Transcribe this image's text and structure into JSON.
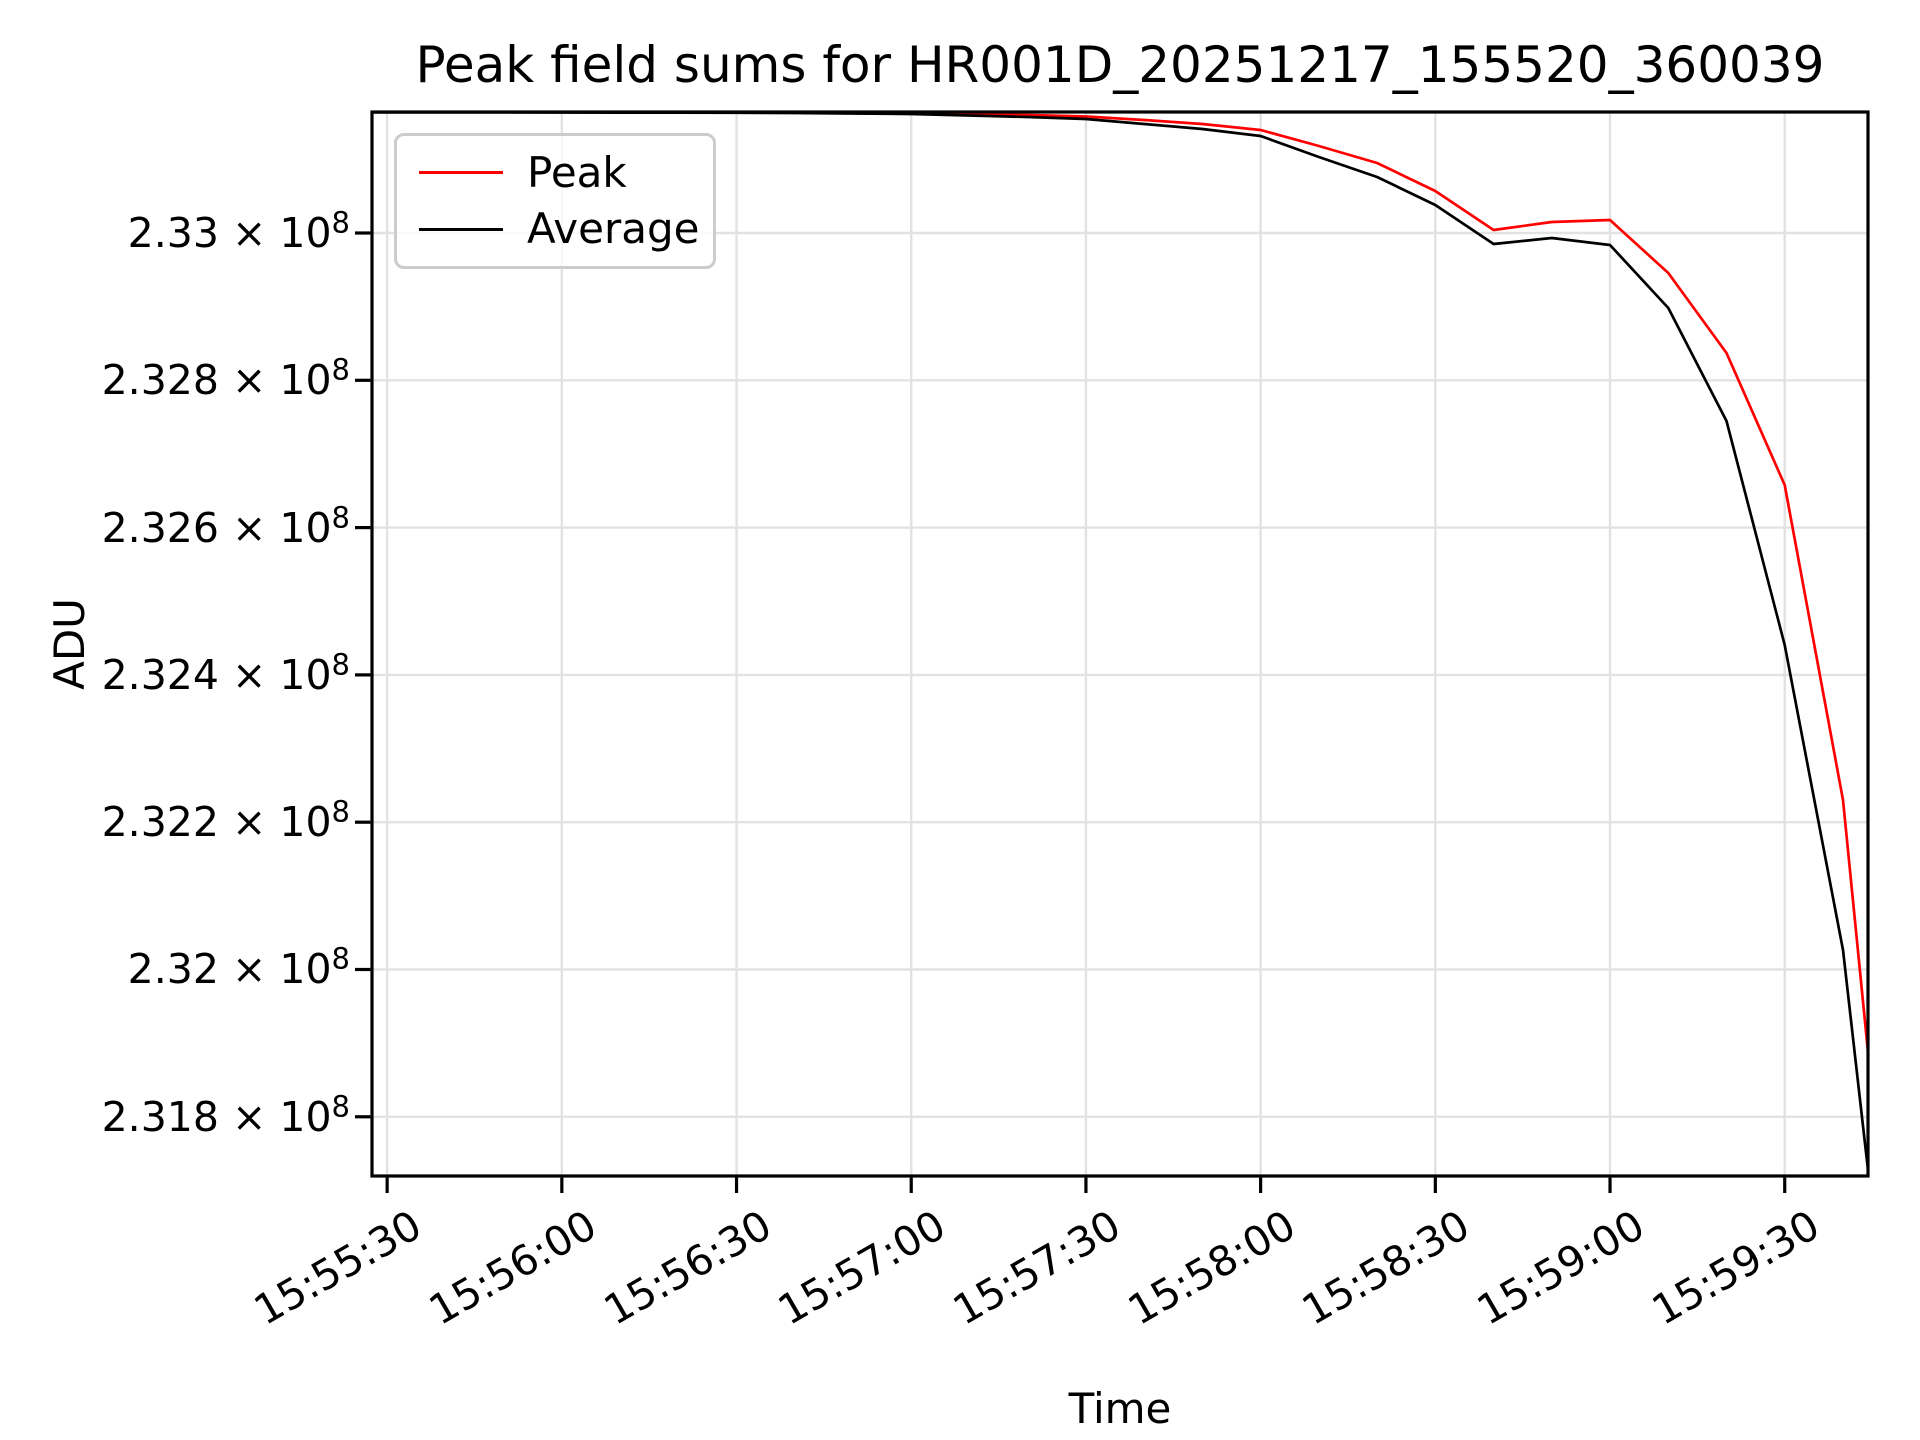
{
  "figure": {
    "title": "Peak field sums for HR001D_20251217_155520_360039",
    "xlabel": "Time",
    "ylabel": "ADU"
  },
  "legend": {
    "entries": [
      {
        "label": "Peak",
        "color": "#ff0000"
      },
      {
        "label": "Average",
        "color": "#000000"
      }
    ]
  },
  "colors": {
    "peak_line": "#ff0000",
    "average_line": "#000000",
    "gridline": "#e2e2e2",
    "axis": "#000000",
    "legend_border": "#cccccc",
    "background": "#ffffff"
  },
  "chart_data": {
    "type": "line",
    "title": "Peak field sums for HR001D_20251217_155520_360039",
    "xlabel": "Time",
    "ylabel": "ADU",
    "grid": true,
    "legend_position": "upper left",
    "x_axis": {
      "tick_labels": [
        "15:55:30",
        "15:56:00",
        "15:56:30",
        "15:57:00",
        "15:57:30",
        "15:58:00",
        "15:58:30",
        "15:59:00",
        "15:59:30"
      ],
      "tick_seconds": [
        0,
        30,
        60,
        90,
        120,
        150,
        180,
        210,
        240
      ],
      "xlim_seconds": [
        -2.6,
        254.3
      ],
      "tick_rotation_deg": 30
    },
    "y_axis": {
      "ticks": [
        {
          "value": 233000000,
          "mantissa": "2.33 × 10",
          "exponent": "8"
        },
        {
          "value": 232800000,
          "mantissa": "2.328 × 10",
          "exponent": "8"
        },
        {
          "value": 232600000,
          "mantissa": "2.326 × 10",
          "exponent": "8"
        },
        {
          "value": 232400000,
          "mantissa": "2.324 × 10",
          "exponent": "8"
        },
        {
          "value": 232200000,
          "mantissa": "2.322 × 10",
          "exponent": "8"
        },
        {
          "value": 232000000,
          "mantissa": "2.32 × 10",
          "exponent": "8"
        },
        {
          "value": 231800000,
          "mantissa": "2.318 × 10",
          "exponent": "8"
        }
      ],
      "ylim": [
        231719600,
        233164300
      ]
    },
    "series": [
      {
        "name": "Peak",
        "color": "#ff0000",
        "x_seconds": [
          -2.6,
          0,
          10,
          20,
          30,
          40,
          50,
          60,
          70,
          80,
          90,
          100,
          110,
          120,
          130,
          140,
          150,
          160,
          170,
          180,
          190,
          200,
          210,
          220,
          230,
          240,
          250,
          254.3
        ],
        "values": [
          233164300,
          233164300,
          233164300,
          233164300,
          233164300,
          233164300,
          233164200,
          233164200,
          233164000,
          233163600,
          233163000,
          233161600,
          233160200,
          233158200,
          233153400,
          233148000,
          233139900,
          233118100,
          233095000,
          233057000,
          233004100,
          233014900,
          233017700,
          232945700,
          232837100,
          232657800,
          232230100,
          231888000
        ]
      },
      {
        "name": "Average",
        "color": "#000000",
        "x_seconds": [
          -2.6,
          0,
          10,
          20,
          30,
          40,
          50,
          60,
          70,
          80,
          90,
          100,
          110,
          120,
          130,
          140,
          150,
          160,
          170,
          180,
          190,
          200,
          210,
          220,
          230,
          240,
          250,
          254.3
        ],
        "values": [
          233163800,
          233163800,
          233163700,
          233163700,
          233163600,
          233163500,
          233163400,
          233163200,
          233163000,
          233162300,
          233161600,
          233159500,
          233157500,
          233154800,
          233148000,
          233141200,
          233131700,
          233103200,
          233076000,
          233038000,
          232985100,
          232993200,
          232983700,
          232898200,
          232744800,
          232440600,
          232026400,
          231727700
        ]
      }
    ]
  }
}
